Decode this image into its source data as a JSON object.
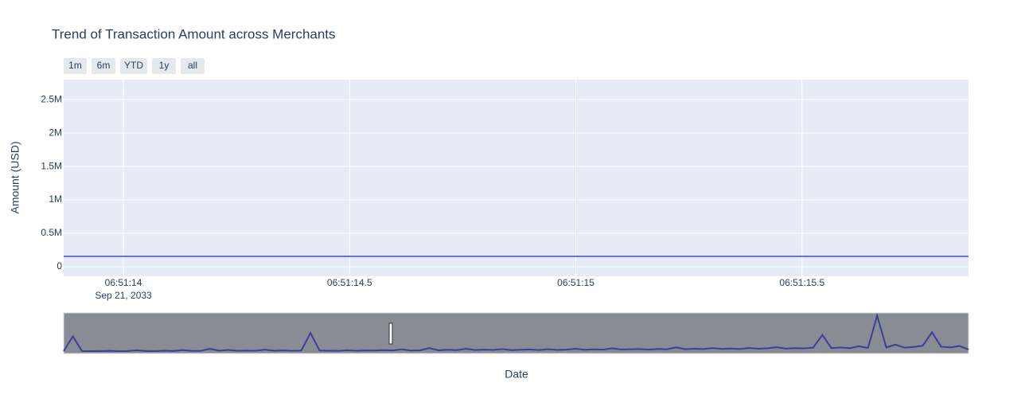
{
  "chart_data": {
    "type": "line",
    "title": "Trend of Transaction Amount across Merchants",
    "range_buttons": [
      "1m",
      "6m",
      "YTD",
      "1y",
      "all"
    ],
    "y_label": "Amount (USD)",
    "x_label": "Date",
    "x_date_label": "Sep 21, 2033",
    "xlim": [
      13.868,
      15.868
    ],
    "xticks": [
      {
        "value": 14,
        "label": "06:51:14"
      },
      {
        "value": 14.5,
        "label": "06:51:14.5"
      },
      {
        "value": 15,
        "label": "06:51:15"
      },
      {
        "value": 15.5,
        "label": "06:51:15.5"
      }
    ],
    "ylim": [
      -143000,
      2800000
    ],
    "yticks": [
      0,
      {
        "value": 500000,
        "label": "0.5M"
      },
      {
        "value": 1000000,
        "label": "1M"
      },
      {
        "value": 1500000,
        "label": "1.5M"
      },
      {
        "value": 2000000,
        "label": "2M"
      },
      {
        "value": 2500000,
        "label": "2.5M"
      }
    ],
    "grid": true,
    "series": [
      {
        "color": "#636efa",
        "x": [
          13.868,
          15.868
        ],
        "values": [
          155000,
          155000
        ]
      }
    ],
    "rangeslider": {
      "color": "#3b3f99",
      "values": [
        30000,
        1100000,
        40000,
        30000,
        35000,
        50000,
        30000,
        40000,
        90000,
        40000,
        35000,
        60000,
        40000,
        110000,
        45000,
        50000,
        200000,
        60000,
        120000,
        50000,
        70000,
        60000,
        140000,
        60000,
        80000,
        60000,
        70000,
        1350000,
        70000,
        60000,
        50000,
        90000,
        60000,
        80000,
        70000,
        100000,
        80000,
        160000,
        70000,
        90000,
        250000,
        90000,
        130000,
        100000,
        200000,
        110000,
        140000,
        120000,
        180000,
        100000,
        130000,
        150000,
        110000,
        170000,
        120000,
        140000,
        200000,
        130000,
        160000,
        140000,
        230000,
        150000,
        170000,
        180000,
        140000,
        190000,
        160000,
        300000,
        170000,
        200000,
        180000,
        250000,
        190000,
        220000,
        180000,
        260000,
        200000,
        230000,
        320000,
        210000,
        250000,
        230000,
        280000,
        1200000,
        250000,
        300000,
        240000,
        380000,
        260000,
        2600000,
        300000,
        500000,
        280000,
        330000,
        420000,
        1400000,
        350000,
        300000,
        400000,
        150000
      ]
    }
  }
}
